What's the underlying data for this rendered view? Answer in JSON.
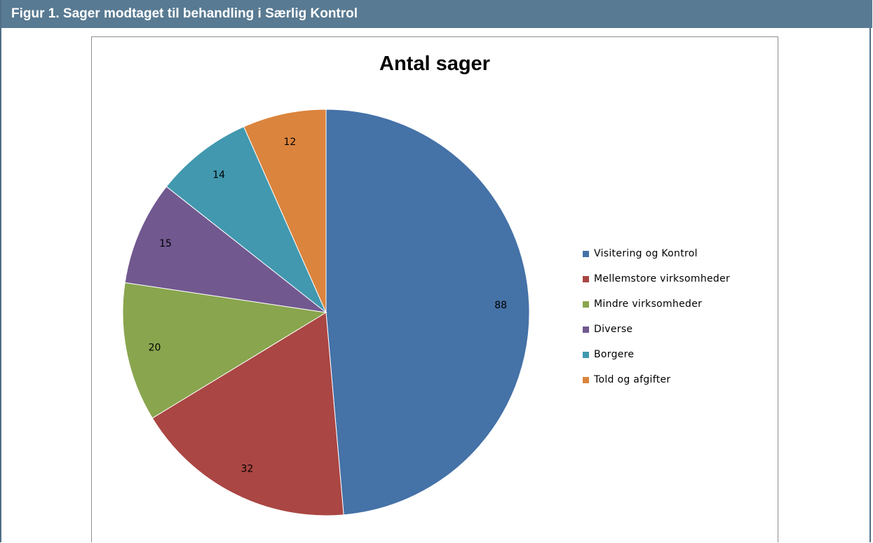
{
  "header": {
    "title": "Figur 1. Sager modtaget til behandling i Særlig Kontrol"
  },
  "chart_data": {
    "type": "pie",
    "title": "Antal sager",
    "categories": [
      "Visitering og Kontrol",
      "Mellemstore virksomheder",
      "Mindre virksomheder",
      "Diverse",
      "Borgere",
      "Told og afgifter"
    ],
    "values": [
      88,
      32,
      20,
      15,
      14,
      12
    ],
    "colors": [
      "#4572a7",
      "#aa4643",
      "#89a54e",
      "#71588f",
      "#4198af",
      "#db843d"
    ],
    "data_labels": [
      "88",
      "32",
      "20",
      "15",
      "14",
      "12"
    ],
    "legend": "right",
    "start_angle_deg": 0,
    "direction": "clockwise"
  }
}
